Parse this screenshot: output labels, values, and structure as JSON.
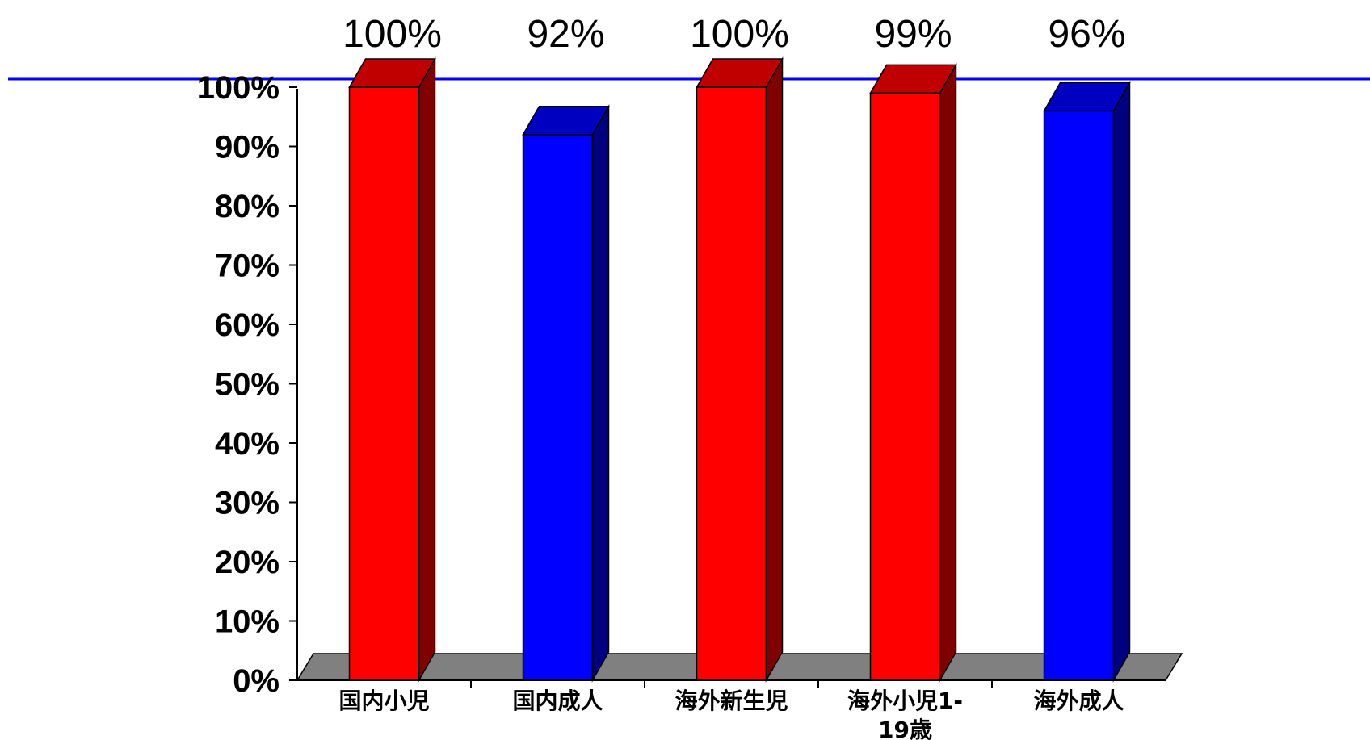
{
  "chart_data": {
    "type": "bar",
    "categories": [
      "国内小児",
      "国内成人",
      "海外新生児",
      "海外小児1-19歳",
      "海外成人"
    ],
    "category_label_lines": [
      [
        "国内小児"
      ],
      [
        "国内成人"
      ],
      [
        "海外新生児"
      ],
      [
        "海外小児1-",
        "19歳"
      ],
      [
        "海外成人"
      ]
    ],
    "values": [
      100,
      92,
      100,
      99,
      96
    ],
    "data_labels": [
      "100%",
      "92%",
      "100%",
      "99%",
      "96%"
    ],
    "bar_colors": [
      "red",
      "blue",
      "red",
      "red",
      "blue"
    ],
    "y_ticks": [
      "0%",
      "10%",
      "20%",
      "30%",
      "40%",
      "50%",
      "60%",
      "70%",
      "80%",
      "90%",
      "100%"
    ],
    "ylim": [
      0,
      100
    ],
    "title": "",
    "xlabel": "",
    "ylabel": "",
    "grid": false,
    "legend": "none",
    "style": "3d-column",
    "reference_line": {
      "value": 100,
      "color": "#0000ff"
    },
    "colors": {
      "red": {
        "front": "#ff0000",
        "top": "#c00000",
        "side": "#800000"
      },
      "blue": {
        "front": "#0000ff",
        "top": "#0000c0",
        "side": "#000080"
      },
      "floor": "#808080"
    }
  }
}
